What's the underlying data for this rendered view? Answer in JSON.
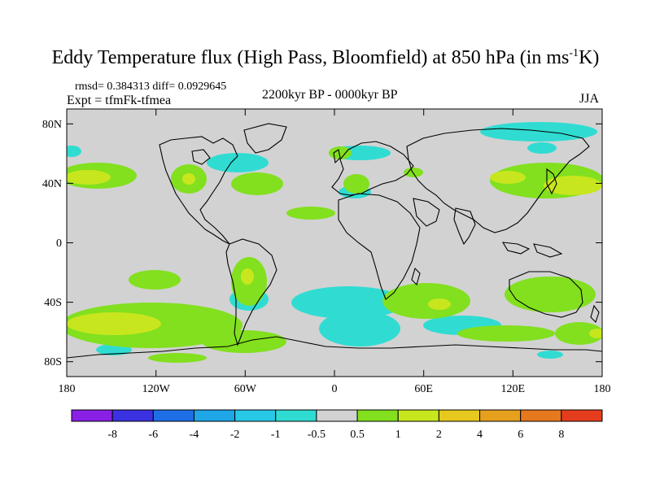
{
  "title": {
    "main": "Eddy Temperature flux (High Pass, Bloomfield) at 850 hPa (in ms",
    "superscript": "-1",
    "unit_tail": "K)"
  },
  "stats": "rmsd= 0.384313 diff= 0.0929645",
  "experiment": "Expt = tfmFk-tfmea",
  "period": "2200kyr BP - 0000kyr BP",
  "season": "JJA",
  "axes": {
    "lat_labels": [
      "80N",
      "40N",
      "0",
      "40S",
      "80S"
    ],
    "lon_labels": [
      "180",
      "120W",
      "60W",
      "0",
      "60E",
      "120E",
      "180"
    ]
  },
  "colorbar": {
    "colors": [
      "#8a1fe6",
      "#3a32e0",
      "#1e6ee6",
      "#1ea6e6",
      "#28c8e6",
      "#30dcd2",
      "#d2d2d2",
      "#82e01e",
      "#c8e61e",
      "#e6c81e",
      "#e6a01e",
      "#e6781e",
      "#e63c1e"
    ],
    "labels": [
      "-8",
      "-6",
      "-4",
      "-2",
      "-1",
      "-0.5",
      "0.5",
      "1",
      "2",
      "4",
      "6",
      "8"
    ]
  },
  "field_colors": {
    "background": "#d2d2d2",
    "neg_weak": "#30dcd2",
    "pos_weak": "#82e01e",
    "pos_mid": "#c8e61e",
    "pos_strong": "#e6c81e"
  }
}
